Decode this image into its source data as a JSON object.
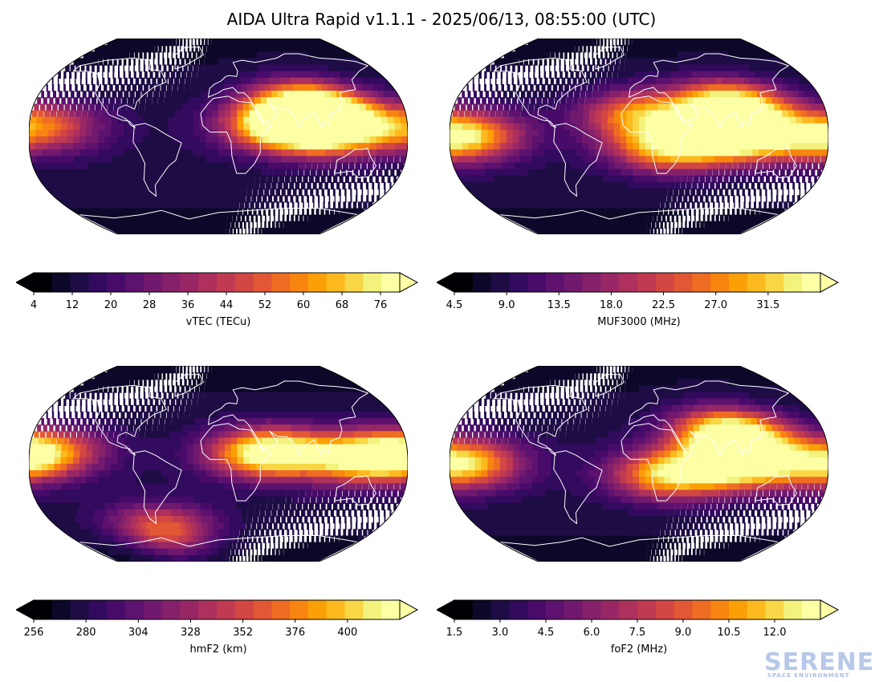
{
  "title": "AIDA Ultra Rapid v1.1.1 - 2025/06/13, 08:55:00 (UTC)",
  "panels": [
    {
      "id": "vtec",
      "label": "vTEC (TECu)",
      "ticks": [
        "4",
        "12",
        "20",
        "28",
        "36",
        "44",
        "52",
        "60",
        "68",
        "76"
      ],
      "range": [
        4,
        80
      ],
      "blobs": [
        {
          "lon": 90,
          "lat": 28,
          "v": 0.98
        },
        {
          "lon": 105,
          "lat": 5,
          "v": 0.85
        },
        {
          "lon": 60,
          "lat": 10,
          "v": 0.75
        },
        {
          "lon": -170,
          "lat": 8,
          "v": 0.55
        }
      ]
    },
    {
      "id": "muf3000",
      "label": "MUF3000 (MHz)",
      "ticks": [
        "4.5",
        "9.0",
        "13.5",
        "18.0",
        "22.5",
        "27.0",
        "31.5"
      ],
      "range": [
        4.5,
        36
      ],
      "blobs": [
        {
          "lon": 90,
          "lat": 28,
          "v": 0.98
        },
        {
          "lon": 100,
          "lat": 0,
          "v": 0.95
        },
        {
          "lon": 30,
          "lat": -10,
          "v": 0.75
        },
        {
          "lon": -170,
          "lat": 0,
          "v": 0.85
        },
        {
          "lon": 0,
          "lat": 20,
          "v": 0.6
        }
      ]
    },
    {
      "id": "hmf2",
      "label": "hmF2 (km)",
      "ticks": [
        "256",
        "280",
        "304",
        "328",
        "352",
        "376",
        "400"
      ],
      "range": [
        256,
        424
      ],
      "blobs": [
        {
          "lon": 50,
          "lat": 10,
          "v": 1.0
        },
        {
          "lon": 140,
          "lat": 5,
          "v": 0.8
        },
        {
          "lon": -170,
          "lat": 10,
          "v": 0.7
        },
        {
          "lon": -60,
          "lat": -60,
          "v": 0.55
        }
      ]
    },
    {
      "id": "fof2",
      "label": "foF2 (MHz)",
      "ticks": [
        "1.5",
        "3.0",
        "4.5",
        "6.0",
        "7.5",
        "9.0",
        "10.5",
        "12.0"
      ],
      "range": [
        1.5,
        13.5
      ],
      "blobs": [
        {
          "lon": 90,
          "lat": 28,
          "v": 0.98
        },
        {
          "lon": 100,
          "lat": 0,
          "v": 0.9
        },
        {
          "lon": 30,
          "lat": -10,
          "v": 0.75
        },
        {
          "lon": -170,
          "lat": 0,
          "v": 0.8
        }
      ]
    }
  ],
  "colormap": [
    "#000004",
    "#0d0829",
    "#1e0c45",
    "#320a5e",
    "#480b6a",
    "#5c126e",
    "#71196e",
    "#85216b",
    "#992766",
    "#ad305d",
    "#c03a51",
    "#d24644",
    "#e25734",
    "#ef6c23",
    "#f7850f",
    "#fb9f07",
    "#fcba1f",
    "#f8d645",
    "#f2f27d",
    "#fcffa4"
  ],
  "logo": {
    "word": "SERENE",
    "subtitle": "SPACE ENVIRONMENT"
  }
}
